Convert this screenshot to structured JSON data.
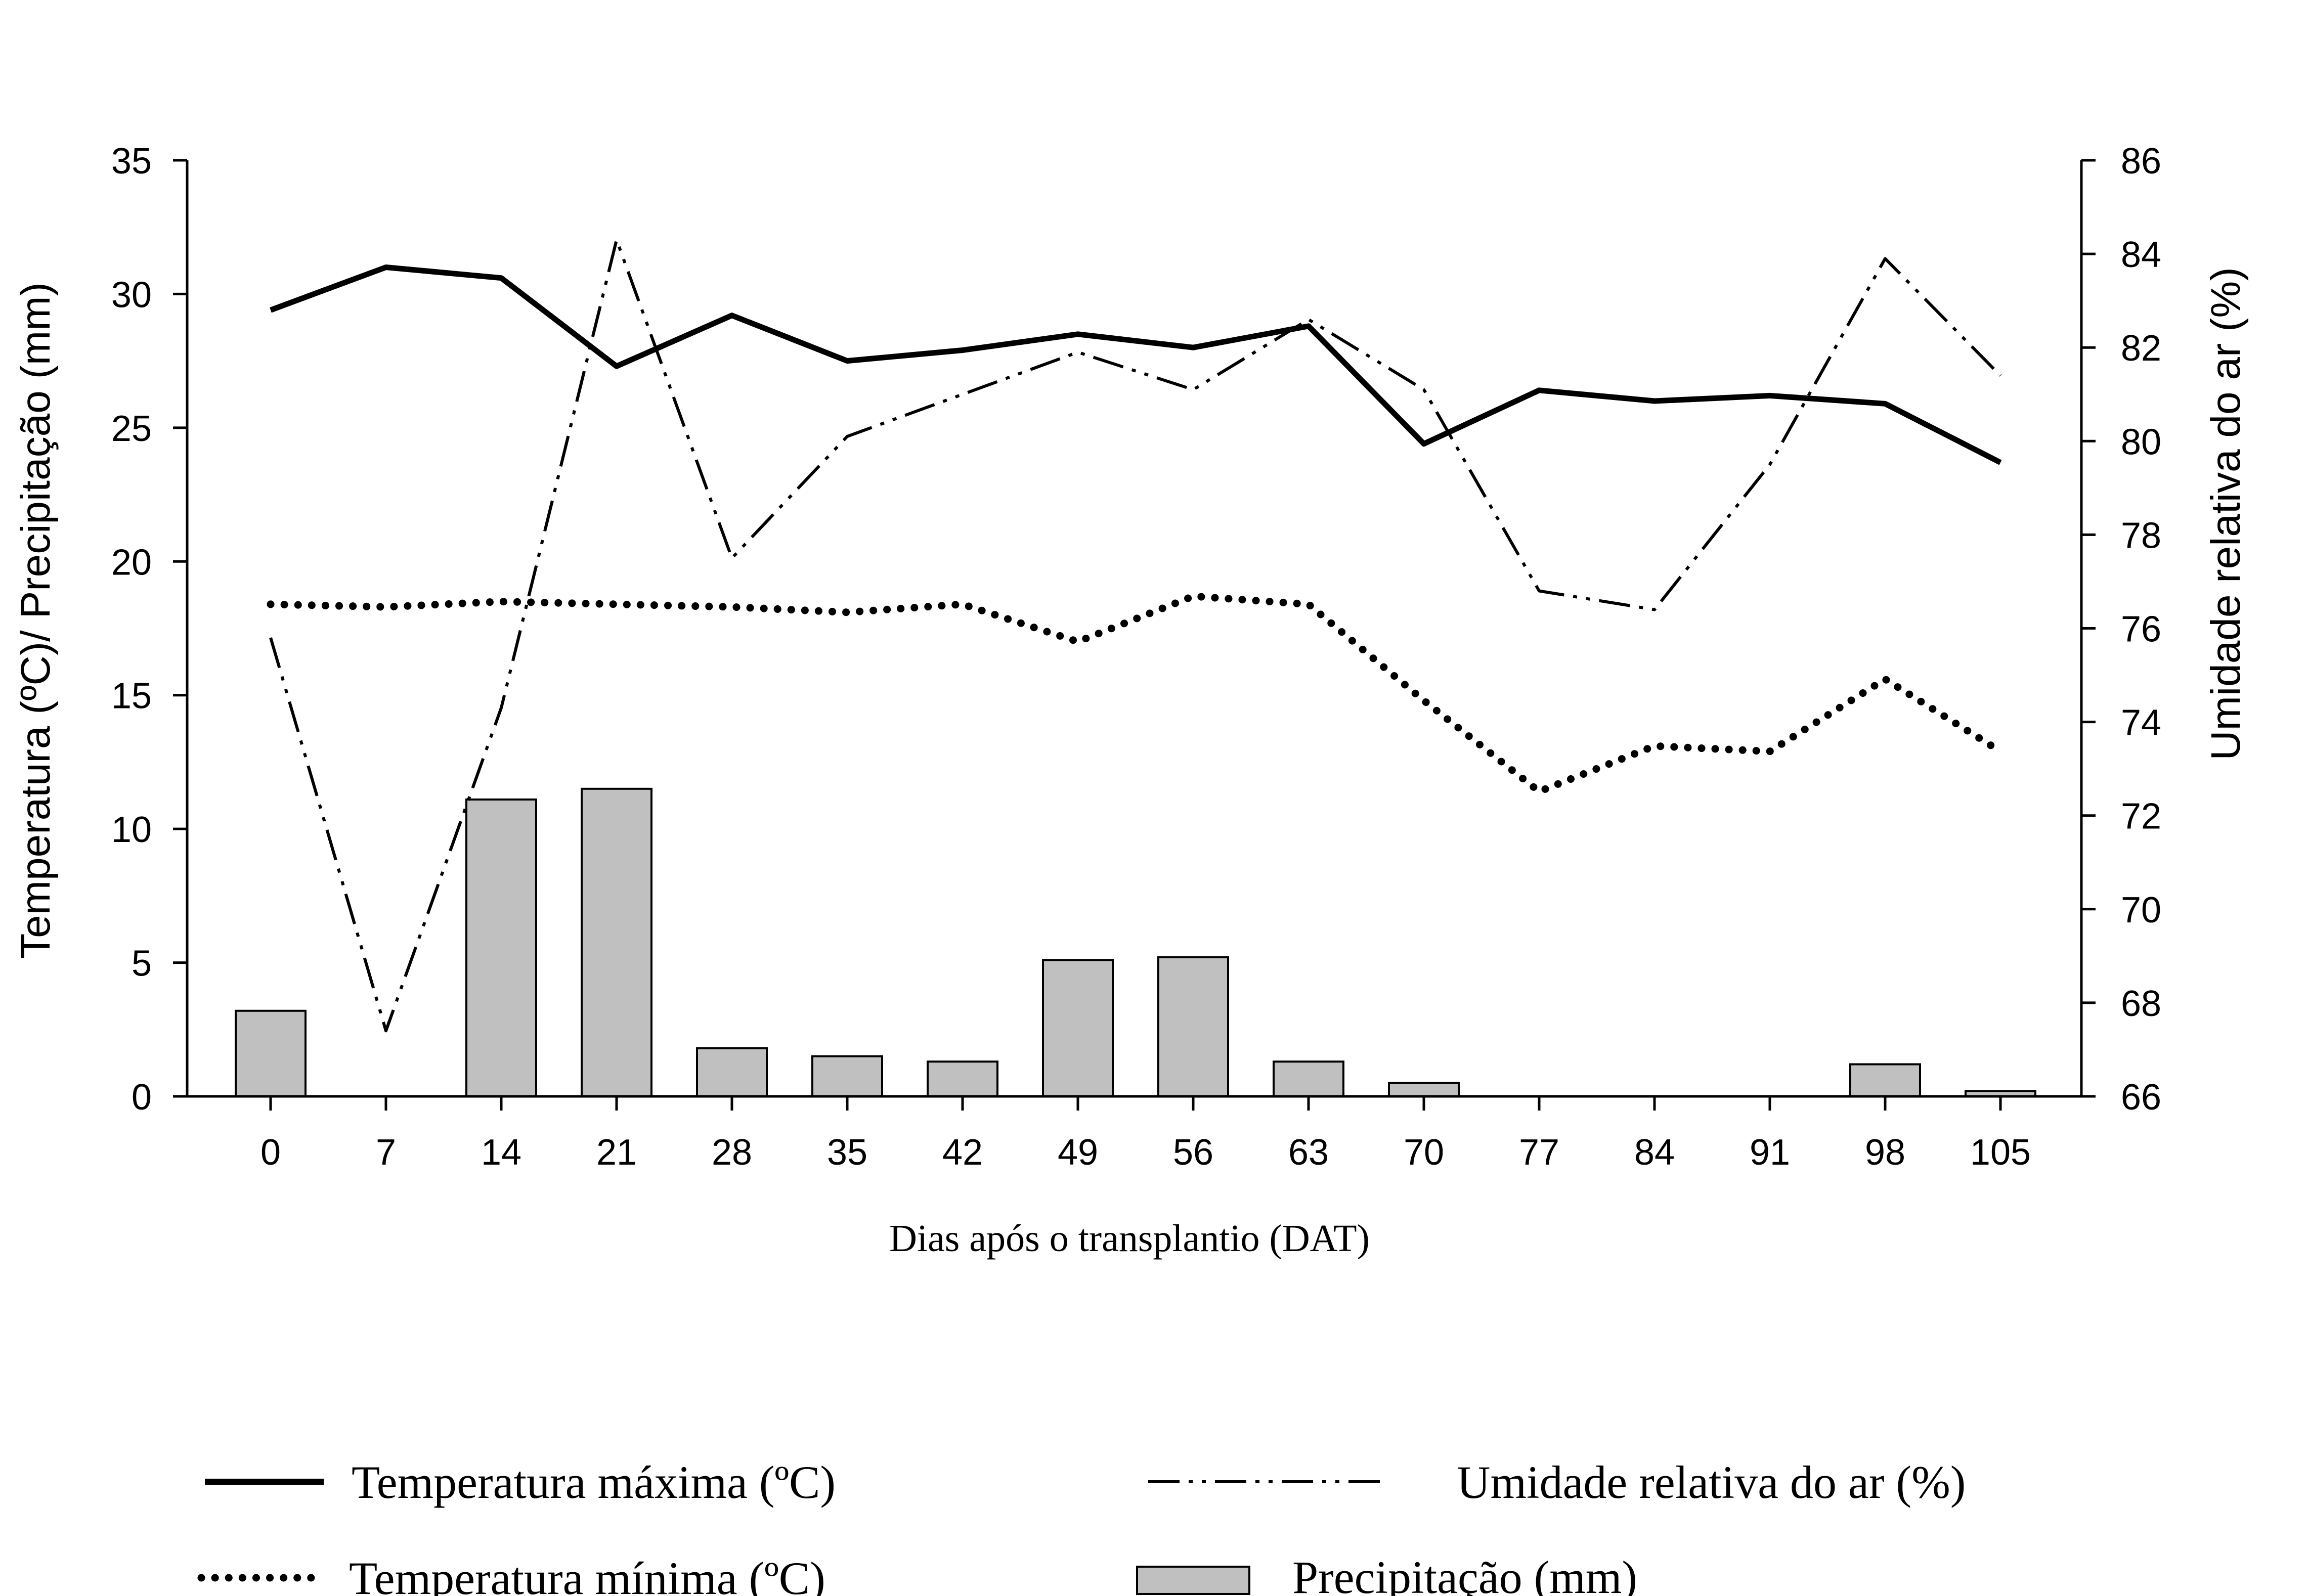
{
  "chart_data": {
    "type": "combo-bar-line",
    "x": [
      0,
      7,
      14,
      21,
      28,
      35,
      42,
      49,
      56,
      63,
      70,
      77,
      84,
      91,
      98,
      105
    ],
    "xlabel": "Dias após o transplantio (DAT)",
    "ylabel_left": "Temperatura (ºC)/ Precipitação (mm)",
    "ylabel_right": "Umidade relativa do ar (%)",
    "ylim_left": [
      0,
      35
    ],
    "ylim_right": [
      66,
      86
    ],
    "yticks_left": [
      0,
      5,
      10,
      15,
      20,
      25,
      30,
      35
    ],
    "yticks_right": [
      66,
      68,
      70,
      72,
      74,
      76,
      78,
      80,
      82,
      84,
      86
    ],
    "grid": false,
    "legend_position": "bottom",
    "series": [
      {
        "name": "Temperatura máxima (ºC)",
        "kind": "line",
        "axis": "left",
        "style": "solid",
        "color": "#000000",
        "values": [
          29.4,
          31.0,
          30.6,
          27.3,
          29.2,
          27.5,
          27.9,
          28.5,
          28.0,
          28.8,
          24.4,
          26.4,
          26.0,
          26.2,
          25.9,
          23.7
        ]
      },
      {
        "name": "Temperatura mínima (ºC)",
        "kind": "line",
        "axis": "left",
        "style": "dotted",
        "color": "#000000",
        "values": [
          18.4,
          18.3,
          18.5,
          18.4,
          18.3,
          18.1,
          18.4,
          17.0,
          18.7,
          18.4,
          14.8,
          11.4,
          13.1,
          12.9,
          15.6,
          12.9
        ]
      },
      {
        "name": "Umidade relativa do ar (%)",
        "kind": "line",
        "axis": "right",
        "style": "dash-dot-dot",
        "color": "#000000",
        "values": [
          75.8,
          67.4,
          74.3,
          84.3,
          77.5,
          80.1,
          81.0,
          81.9,
          81.1,
          82.6,
          81.1,
          76.8,
          76.4,
          79.5,
          83.9,
          81.4
        ]
      },
      {
        "name": "Precipitação (mm)",
        "kind": "bar",
        "axis": "left",
        "color": "#c0c0c0",
        "values": [
          3.2,
          0,
          11.1,
          11.5,
          1.8,
          1.5,
          1.3,
          5.1,
          5.2,
          1.3,
          0.5,
          0,
          0,
          0,
          1.2,
          0.2
        ]
      }
    ]
  }
}
